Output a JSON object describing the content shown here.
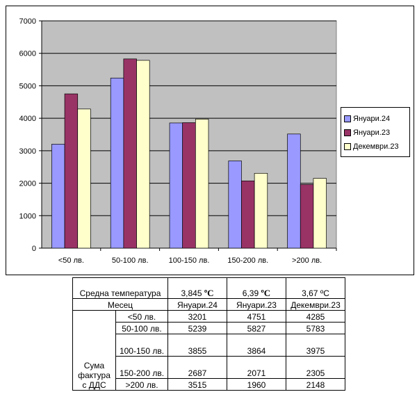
{
  "chart_data": {
    "type": "bar",
    "categories": [
      "<50 лв.",
      "50-100 лв.",
      "100-150 лв.",
      "150-200 лв.",
      ">200 лв."
    ],
    "series": [
      {
        "name": "Януари.24",
        "color": "#9999ff",
        "values": [
          3201,
          5239,
          3855,
          2687,
          3515
        ]
      },
      {
        "name": "Януари.23",
        "color": "#993366",
        "values": [
          4751,
          5827,
          3864,
          2071,
          1960
        ]
      },
      {
        "name": "Декември.23",
        "color": "#ffffcc",
        "values": [
          4285,
          5783,
          3975,
          2305,
          2148
        ]
      }
    ],
    "ylim": [
      0,
      7000
    ],
    "yticks": [
      0,
      1000,
      2000,
      3000,
      4000,
      5000,
      6000,
      7000
    ],
    "grid": true,
    "plot_background": "#c0c0c0",
    "legend_position": "right",
    "title": "",
    "xlabel": "",
    "ylabel": ""
  },
  "table": {
    "temp_label": "Средна температура",
    "temps": [
      {
        "value": "3,845",
        "unit": "ºC"
      },
      {
        "value": "6,39",
        "unit": "ºC"
      },
      {
        "value": "3,67",
        "unit": "ºC"
      }
    ],
    "month_label": "Месец",
    "months": [
      "Януари.24",
      "Януари.23",
      "Декември.23"
    ],
    "sum_label": "Сума фактура с ДДС",
    "rows": [
      {
        "label": "<50 лв.",
        "values": [
          "3201",
          "4751",
          "4285"
        ]
      },
      {
        "label": "50-100 лв.",
        "values": [
          "5239",
          "5827",
          "5783"
        ]
      },
      {
        "label": "100-150 лв.",
        "values": [
          "3855",
          "3864",
          "3975"
        ]
      },
      {
        "label": "150-200 лв.",
        "values": [
          "2687",
          "2071",
          "2305"
        ]
      },
      {
        "label": ">200 лв.",
        "values": [
          "3515",
          "1960",
          "2148"
        ]
      }
    ]
  }
}
